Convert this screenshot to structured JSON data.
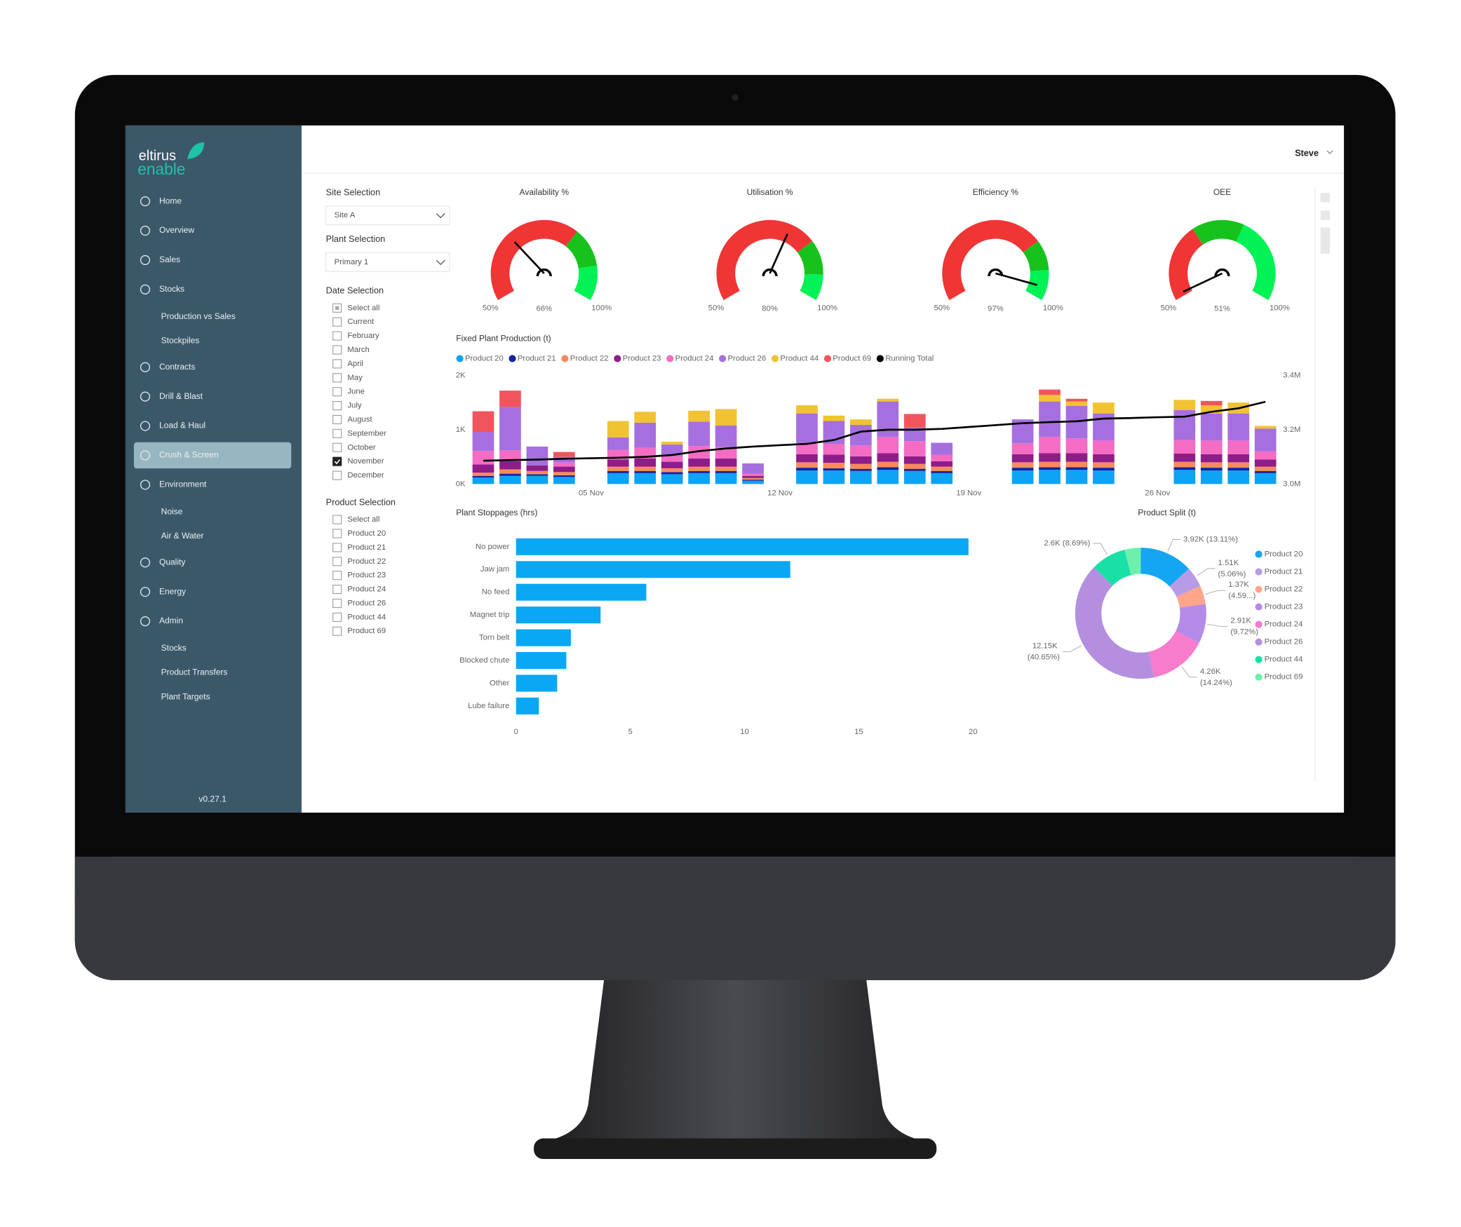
{
  "sidebar": {
    "brand": "eltirus",
    "brand_sub": "enable",
    "nav": [
      {
        "label": "Home"
      },
      {
        "label": "Overview"
      },
      {
        "label": "Sales"
      },
      {
        "label": "Stocks",
        "children": [
          "Production vs Sales",
          "Stockpiles"
        ]
      },
      {
        "label": "Contracts"
      },
      {
        "label": "Drill & Blast"
      },
      {
        "label": "Load & Haul"
      },
      {
        "label": "Crush & Screen",
        "active": true
      },
      {
        "label": "Environment",
        "children": [
          "Noise",
          "Air & Water"
        ]
      },
      {
        "label": "Quality"
      },
      {
        "label": "Energy"
      },
      {
        "label": "Admin",
        "children": [
          "Stocks",
          "Product Transfers",
          "Plant Targets"
        ]
      }
    ],
    "version": "v0.27.1"
  },
  "header": {
    "user": "Steve"
  },
  "filters": {
    "site": {
      "label": "Site Selection",
      "value": "Site A"
    },
    "plant": {
      "label": "Plant Selection",
      "value": "Primary 1"
    },
    "date": {
      "label": "Date Selection",
      "options": [
        {
          "label": "Select all",
          "partial": true
        },
        {
          "label": "Current"
        },
        {
          "label": "February"
        },
        {
          "label": "March"
        },
        {
          "label": "April"
        },
        {
          "label": "May"
        },
        {
          "label": "June"
        },
        {
          "label": "July"
        },
        {
          "label": "August"
        },
        {
          "label": "September"
        },
        {
          "label": "October"
        },
        {
          "label": "November",
          "checked": true
        },
        {
          "label": "December"
        }
      ]
    },
    "product": {
      "label": "Product Selection",
      "options": [
        {
          "label": "Select all"
        },
        {
          "label": "Product 20"
        },
        {
          "label": "Product 21"
        },
        {
          "label": "Product 22"
        },
        {
          "label": "Product 23"
        },
        {
          "label": "Product 24"
        },
        {
          "label": "Product 26"
        },
        {
          "label": "Product 44"
        },
        {
          "label": "Product 69"
        }
      ]
    }
  },
  "chart_data": [
    {
      "type": "gauge",
      "title": "Availability %",
      "value": 66,
      "value_label": "66%",
      "lim": [
        50,
        100
      ],
      "ticks": [
        {
          "value": 50,
          "label": "50%"
        },
        {
          "value": 100,
          "label": "100%"
        }
      ],
      "bands": [
        {
          "from": 50,
          "to": 83,
          "color": "#f03535"
        },
        {
          "from": 83,
          "to": 92,
          "color": "#17c21c"
        },
        {
          "from": 92,
          "to": 100,
          "color": "#00f254"
        }
      ]
    },
    {
      "type": "gauge",
      "title": "Utilisation %",
      "value": 80,
      "value_label": "80%",
      "lim": [
        50,
        100
      ],
      "ticks": [
        {
          "value": 50,
          "label": "50%"
        },
        {
          "value": 100,
          "label": "100%"
        }
      ],
      "bands": [
        {
          "from": 50,
          "to": 86,
          "color": "#f03535"
        },
        {
          "from": 86,
          "to": 94,
          "color": "#17c21c"
        },
        {
          "from": 94,
          "to": 100,
          "color": "#00f254"
        }
      ]
    },
    {
      "type": "gauge",
      "title": "Efficiency %",
      "value": 97,
      "value_label": "97%",
      "lim": [
        50,
        100
      ],
      "ticks": [
        {
          "value": 50,
          "label": "50%"
        },
        {
          "value": 100,
          "label": "100%"
        }
      ],
      "bands": [
        {
          "from": 50,
          "to": 86,
          "color": "#f03535"
        },
        {
          "from": 86,
          "to": 93,
          "color": "#17c21c"
        },
        {
          "from": 93,
          "to": 100,
          "color": "#00f254"
        }
      ]
    },
    {
      "type": "gauge",
      "title": "OEE",
      "value": 51,
      "value_label": "51%",
      "lim": [
        50,
        100
      ],
      "ticks": [
        {
          "value": 50,
          "label": "50%"
        },
        {
          "value": 100,
          "label": "100%"
        }
      ],
      "bands": [
        {
          "from": 50,
          "to": 68,
          "color": "#f03535"
        },
        {
          "from": 68,
          "to": 80,
          "color": "#17c21c"
        },
        {
          "from": 80,
          "to": 100,
          "color": "#00f254"
        }
      ]
    },
    {
      "type": "bar",
      "stacked": true,
      "title": "Fixed Plant Production (t)",
      "categories": [
        null,
        null,
        null,
        null,
        "05 Nov",
        null,
        null,
        null,
        null,
        null,
        null,
        "12 Nov",
        null,
        null,
        null,
        null,
        null,
        null,
        "19 Nov",
        null,
        null,
        null,
        null,
        null,
        null,
        "26 Nov",
        null,
        null,
        null,
        null
      ],
      "series": [
        {
          "name": "Product 20",
          "color": "#0fa3f5",
          "values": [
            120,
            150,
            150,
            130,
            0,
            200,
            200,
            180,
            200,
            200,
            60,
            0,
            250,
            250,
            240,
            260,
            240,
            200,
            0,
            0,
            250,
            260,
            260,
            250,
            0,
            0,
            260,
            250,
            250,
            200
          ]
        },
        {
          "name": "Product 21",
          "color": "#14239a",
          "values": [
            30,
            40,
            30,
            30,
            0,
            40,
            40,
            40,
            40,
            40,
            20,
            0,
            50,
            40,
            40,
            50,
            40,
            40,
            0,
            0,
            50,
            50,
            50,
            50,
            0,
            0,
            50,
            50,
            50,
            40
          ]
        },
        {
          "name": "Product 22",
          "color": "#fb8a5a",
          "values": [
            60,
            80,
            60,
            60,
            0,
            80,
            80,
            70,
            80,
            80,
            30,
            0,
            100,
            100,
            90,
            100,
            90,
            80,
            0,
            0,
            100,
            100,
            100,
            100,
            0,
            0,
            100,
            100,
            100,
            80
          ]
        },
        {
          "name": "Product 23",
          "color": "#8e1d8a",
          "values": [
            150,
            150,
            100,
            100,
            0,
            130,
            150,
            120,
            150,
            150,
            40,
            0,
            150,
            150,
            140,
            160,
            140,
            100,
            0,
            0,
            150,
            160,
            160,
            150,
            0,
            0,
            150,
            150,
            150,
            130
          ]
        },
        {
          "name": "Product 24",
          "color": "#f46cc3",
          "values": [
            250,
            200,
            0,
            80,
            0,
            180,
            200,
            100,
            230,
            210,
            40,
            0,
            200,
            200,
            200,
            300,
            280,
            120,
            0,
            0,
            200,
            300,
            270,
            250,
            0,
            0,
            250,
            250,
            250,
            150
          ]
        },
        {
          "name": "Product 26",
          "color": "#a66fdf",
          "values": [
            350,
            800,
            350,
            100,
            0,
            230,
            460,
            220,
            450,
            400,
            190,
            0,
            550,
            420,
            380,
            650,
            250,
            220,
            0,
            0,
            440,
            650,
            600,
            500,
            0,
            0,
            550,
            500,
            500,
            420
          ]
        },
        {
          "name": "Product 44",
          "color": "#f1c232",
          "values": [
            0,
            0,
            0,
            0,
            0,
            300,
            200,
            50,
            200,
            300,
            0,
            0,
            150,
            100,
            100,
            50,
            0,
            0,
            0,
            0,
            0,
            120,
            80,
            200,
            0,
            0,
            190,
            150,
            200,
            50
          ]
        },
        {
          "name": "Product 69",
          "color": "#f2545e",
          "values": [
            380,
            300,
            0,
            90,
            0,
            0,
            0,
            0,
            0,
            0,
            0,
            0,
            0,
            0,
            0,
            0,
            250,
            0,
            0,
            0,
            0,
            100,
            50,
            0,
            0,
            0,
            0,
            80,
            0,
            0
          ]
        },
        {
          "name": "Running Total",
          "color": "#000000",
          "axis": "y2",
          "values": [
            3086000,
            3088000,
            3090000,
            3093000,
            3095000,
            3097000,
            3100000,
            3107000,
            3121000,
            3131000,
            3138000,
            3143000,
            3148000,
            3162000,
            3193000,
            3200000,
            3200000,
            3203000,
            3210000,
            3217000,
            3224000,
            3228000,
            3231000,
            3241000,
            3243000,
            3246000,
            3248000,
            3266000,
            3279000,
            3303000
          ]
        }
      ],
      "ylim": [
        0,
        2000
      ],
      "yticks": [
        {
          "value": 0,
          "label": "0K"
        },
        {
          "value": 1000,
          "label": "1K"
        },
        {
          "value": 2000,
          "label": "2K"
        }
      ],
      "y2lim": [
        3000000,
        3400000
      ],
      "y2ticks": [
        {
          "value": 3000000,
          "label": "3.0M"
        },
        {
          "value": 3200000,
          "label": "3.2M"
        },
        {
          "value": 3400000,
          "label": "3.4M"
        }
      ],
      "legend": "top-left"
    },
    {
      "type": "bar",
      "orientation": "horizontal",
      "title": "Plant Stoppages (hrs)",
      "categories": [
        "No power",
        "Jaw jam",
        "No feed",
        "Magnet trip",
        "Torn belt",
        "Blocked chute",
        "Other",
        "Lube failure"
      ],
      "values": [
        19.8,
        12.0,
        5.7,
        3.7,
        2.4,
        2.2,
        1.8,
        1.0
      ],
      "color": "#0aa7f5",
      "xlim": [
        0,
        20
      ],
      "xticks": [
        0,
        5,
        10,
        15,
        20
      ]
    },
    {
      "type": "pie",
      "donut": true,
      "title": "Product Split (t)",
      "categories": [
        "Product 20",
        "Product 21",
        "Product 22",
        "Product 23",
        "Product 24",
        "Product 26",
        "Product 44",
        "Product 69"
      ],
      "values": [
        3920,
        1510,
        1370,
        2910,
        4260,
        12150,
        2600,
        1180
      ],
      "value_labels": [
        "3.92K (13.11%)",
        "1.51K (5.06%)",
        "1.37K (4.59...)",
        "2.91K (9.72%)",
        "4.26K (14.24%)",
        "12.15K (40.65%)",
        "2.6K (8.69%)",
        null
      ],
      "colors": [
        "#14a6f2",
        "#b79be6",
        "#ffa58a",
        "#b38be8",
        "#f77ccc",
        "#b48fe0",
        "#19e0a6",
        "#6cf0ac"
      ],
      "legend": "right"
    }
  ]
}
